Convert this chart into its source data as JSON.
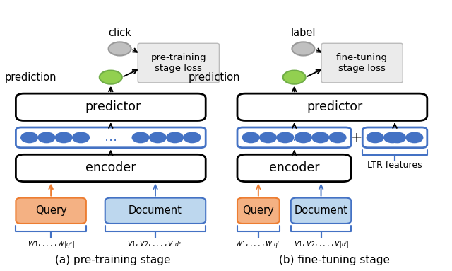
{
  "bg_color": "#ffffff",
  "colors": {
    "blue": "#4472C4",
    "blue_light": "#BDD7EE",
    "orange": "#F4B183",
    "orange_dark": "#ED7D31",
    "gray_circle": "#C0C0C0",
    "green_circle": "#92D050",
    "green_circle_edge": "#70AD47",
    "loss_box_bg": "#EBEBEB",
    "loss_box_edge": "#BBBBBB",
    "black": "#000000",
    "white": "#ffffff"
  },
  "panels": [
    {
      "id": "left",
      "ox": 0.02,
      "caption": "(a) pre-training stage",
      "click_label": "click",
      "loss_label": "pre-training\nstage loss",
      "q_tokens": "$w_1,...,w_{|q^c|}$",
      "d_tokens": "$v_1, v_2,...,v_{|d^c|}$",
      "has_ltr": false
    },
    {
      "id": "right",
      "ox": 0.51,
      "caption": "(b) fine-tuning stage",
      "click_label": "label",
      "loss_label": "fine-tuning\nstage loss",
      "q_tokens": "$w_1,...,w_{|q^l|}$",
      "d_tokens": "$v_1, v_2,...,v_{|d^l|}$",
      "has_ltr": true
    }
  ]
}
